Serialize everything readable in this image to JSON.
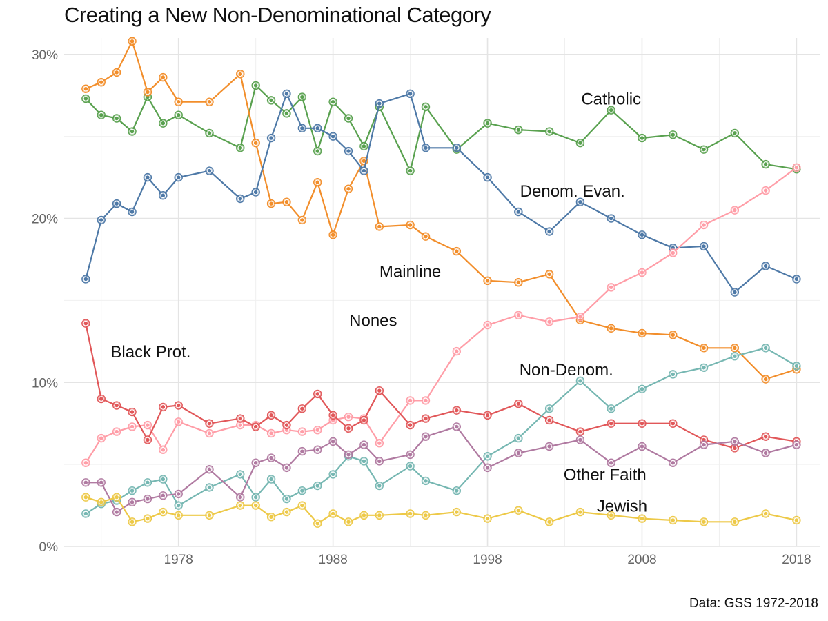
{
  "chart_data": {
    "type": "line",
    "title": "Creating a New Non-Denominational Category",
    "caption": "Data: GSS 1972-2018",
    "xlabel": "",
    "ylabel": "",
    "xlim": [
      1970.6,
      2019.5
    ],
    "ylim": [
      0,
      31
    ],
    "x_ticks": [
      1978,
      1988,
      1998,
      2008,
      2018
    ],
    "x_tick_labels": [
      "1978",
      "1988",
      "1998",
      "2008",
      "2018"
    ],
    "y_ticks": [
      0,
      10,
      20,
      30
    ],
    "y_tick_labels": [
      "0%",
      "10%",
      "20%",
      "30%"
    ],
    "x": [
      1972,
      1973,
      1974,
      1975,
      1976,
      1977,
      1978,
      1980,
      1982,
      1983,
      1984,
      1985,
      1986,
      1987,
      1988,
      1989,
      1990,
      1991,
      1993,
      1994,
      1996,
      1998,
      2000,
      2002,
      2004,
      2006,
      2008,
      2010,
      2012,
      2014,
      2016,
      2018
    ],
    "series": [
      {
        "name": "Catholic",
        "color": "#59a14f",
        "values": [
          27.3,
          26.3,
          26.1,
          25.3,
          27.4,
          25.8,
          26.3,
          25.2,
          24.3,
          28.1,
          27.2,
          26.4,
          27.4,
          24.1,
          27.1,
          26.1,
          24.4,
          26.8,
          22.9,
          26.8,
          24.2,
          25.8,
          25.4,
          25.3,
          24.6,
          26.6,
          24.9,
          25.1,
          24.2,
          25.2,
          23.3,
          23.0
        ]
      },
      {
        "name": "Mainline",
        "color": "#f28e2b",
        "values": [
          27.9,
          28.3,
          28.9,
          30.8,
          27.7,
          28.6,
          27.1,
          27.1,
          28.8,
          24.6,
          20.9,
          21.0,
          19.9,
          22.2,
          19.0,
          21.8,
          23.5,
          19.5,
          19.6,
          18.9,
          18.0,
          16.2,
          16.1,
          16.6,
          13.8,
          13.3,
          13.0,
          12.9,
          12.1,
          12.1,
          10.2,
          10.8
        ]
      },
      {
        "name": "Denom. Evan.",
        "color": "#4e79a7",
        "values": [
          16.3,
          19.9,
          20.9,
          20.4,
          22.5,
          21.4,
          22.5,
          22.9,
          21.2,
          21.6,
          24.9,
          27.6,
          25.5,
          25.5,
          25.0,
          24.1,
          22.9,
          27.0,
          27.6,
          24.3,
          24.3,
          22.5,
          20.4,
          19.2,
          21.0,
          20.0,
          19.0,
          18.2,
          18.3,
          15.5,
          17.1,
          16.3
        ]
      },
      {
        "name": "Nones",
        "color": "#ff9da7",
        "values": [
          5.1,
          6.6,
          7.0,
          7.3,
          7.4,
          5.9,
          7.6,
          6.9,
          7.4,
          7.4,
          6.9,
          7.1,
          7.0,
          7.1,
          7.7,
          7.9,
          7.8,
          6.3,
          8.9,
          8.9,
          11.9,
          13.5,
          14.1,
          13.7,
          14.0,
          15.8,
          16.7,
          17.9,
          19.6,
          20.5,
          21.7,
          23.1
        ]
      },
      {
        "name": "Black Prot.",
        "color": "#e15759",
        "values": [
          13.6,
          9.0,
          8.6,
          8.2,
          6.5,
          8.5,
          8.6,
          7.5,
          7.8,
          7.3,
          8.0,
          7.4,
          8.4,
          9.3,
          8.0,
          7.2,
          7.7,
          9.5,
          7.4,
          7.8,
          8.3,
          8.0,
          8.7,
          7.7,
          7.0,
          7.5,
          7.5,
          7.5,
          6.5,
          6.0,
          6.7,
          6.4
        ]
      },
      {
        "name": "Non-Denom.",
        "color": "#76b7b2",
        "values": [
          2.0,
          2.6,
          2.8,
          3.4,
          3.9,
          4.1,
          2.5,
          3.6,
          4.4,
          3.0,
          4.1,
          2.9,
          3.4,
          3.7,
          4.4,
          5.5,
          5.2,
          3.7,
          4.9,
          4.0,
          3.4,
          5.5,
          6.6,
          8.4,
          10.1,
          8.4,
          9.6,
          10.5,
          10.9,
          11.6,
          12.1,
          11.0
        ]
      },
      {
        "name": "Other Faith",
        "color": "#b07aa1",
        "values": [
          3.9,
          3.9,
          2.1,
          2.7,
          2.9,
          3.1,
          3.2,
          4.7,
          3.0,
          5.1,
          5.4,
          4.8,
          5.8,
          5.9,
          6.4,
          5.6,
          6.2,
          5.2,
          5.6,
          6.7,
          7.3,
          4.8,
          5.7,
          6.1,
          6.5,
          5.1,
          6.1,
          5.1,
          6.2,
          6.4,
          5.7,
          6.2
        ]
      },
      {
        "name": "Jewish",
        "color": "#edc948",
        "values": [
          3.0,
          2.7,
          3.0,
          1.5,
          1.7,
          2.1,
          1.9,
          1.9,
          2.5,
          2.5,
          1.8,
          2.1,
          2.5,
          1.4,
          2.0,
          1.5,
          1.9,
          1.9,
          2.0,
          1.9,
          2.1,
          1.7,
          2.2,
          1.5,
          2.1,
          1.9,
          1.7,
          1.6,
          1.5,
          1.5,
          2.0,
          1.6
        ]
      }
    ],
    "annotations": [
      {
        "text": "Catholic",
        "x": 2006,
        "y": 27.2
      },
      {
        "text": "Denom. Evan.",
        "x": 2003.5,
        "y": 21.6
      },
      {
        "text": "Mainline",
        "x": 1993,
        "y": 16.7
      },
      {
        "text": "Nones",
        "x": 1990.6,
        "y": 13.7
      },
      {
        "text": "Black Prot.",
        "x": 1976.2,
        "y": 11.8
      },
      {
        "text": "Non-Denom.",
        "x": 2003.1,
        "y": 10.7
      },
      {
        "text": "Other Faith",
        "x": 2005.6,
        "y": 4.3
      },
      {
        "text": "Jewish",
        "x": 2006.7,
        "y": 2.4
      }
    ],
    "grid": true,
    "legend": "none"
  }
}
